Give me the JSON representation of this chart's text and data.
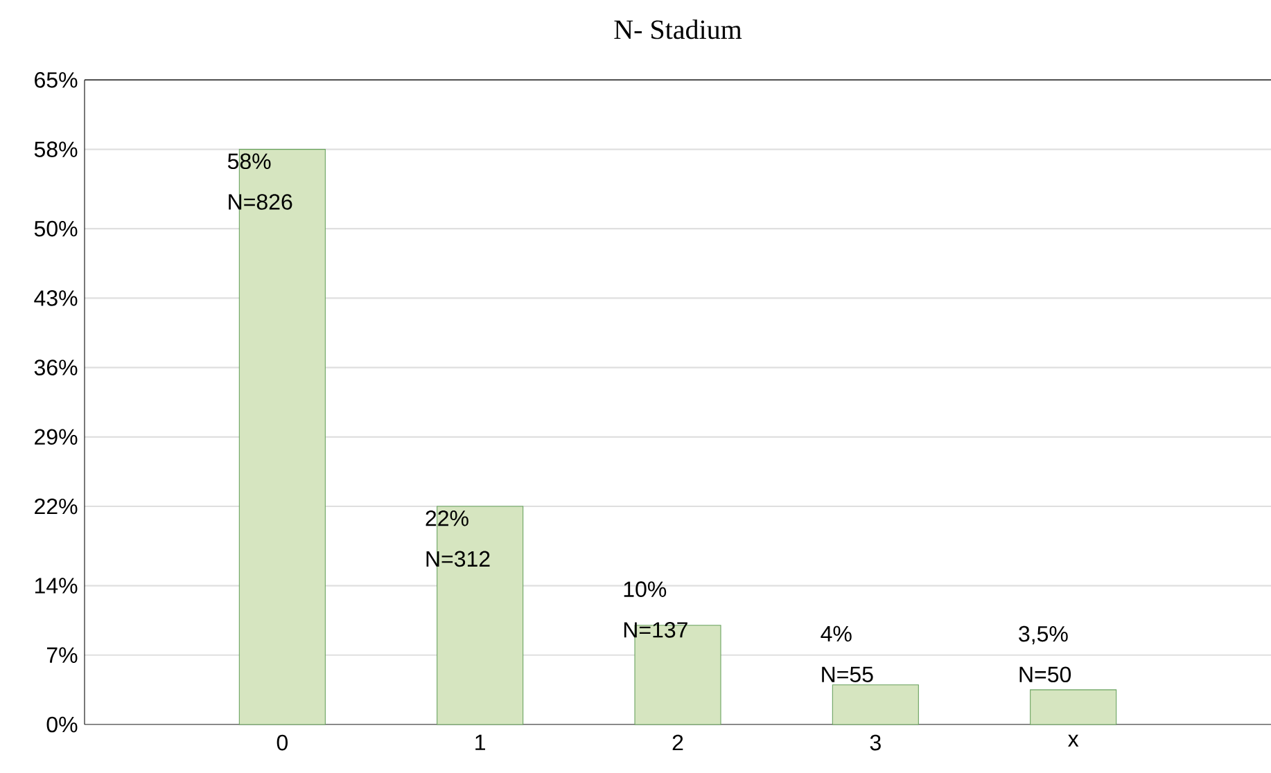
{
  "chart_data": {
    "type": "bar",
    "title": "N- Stadium",
    "categories": [
      "0",
      "1",
      "2",
      "3",
      "x"
    ],
    "values": [
      58,
      22,
      10,
      4,
      3.5
    ],
    "value_labels": [
      "58% N=826",
      "22% N=312",
      "10% N=137",
      "4% N=55",
      "3,5% N=50"
    ],
    "color": "#d6e5c0",
    "ylim": [
      0,
      65
    ],
    "yticks": [
      {
        "value": 0,
        "label": "0%"
      },
      {
        "value": 7,
        "label": "7%"
      },
      {
        "value": 14,
        "label": "14%"
      },
      {
        "value": 22,
        "label": "22%"
      },
      {
        "value": 29,
        "label": "29%"
      },
      {
        "value": 36,
        "label": "36%"
      },
      {
        "value": 43,
        "label": "43%"
      },
      {
        "value": 50,
        "label": "50%"
      },
      {
        "value": 58,
        "label": "58%"
      },
      {
        "value": 65,
        "label": "65%"
      }
    ],
    "grid": "y"
  }
}
